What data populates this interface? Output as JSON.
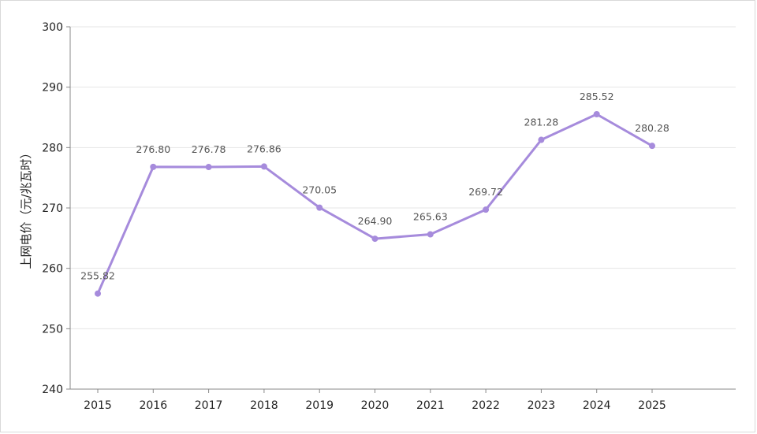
{
  "chart_data": {
    "type": "line",
    "categories": [
      "2015",
      "2016",
      "2017",
      "2018",
      "2019",
      "2020",
      "2021",
      "2022",
      "2023",
      "2024",
      "2025"
    ],
    "series": [
      {
        "values": [
          255.82,
          276.8,
          276.78,
          276.86,
          270.05,
          264.9,
          265.63,
          269.72,
          281.28,
          285.52,
          280.28
        ]
      }
    ],
    "data_labels": [
      "255.82",
      "276.80",
      "276.78",
      "276.86",
      "270.05",
      "264.90",
      "265.63",
      "269.72",
      "281.28",
      "285.52",
      "280.28"
    ],
    "ylabel": "上网电价（元/兆瓦时）",
    "xlabel": "",
    "ylim": [
      240,
      300
    ],
    "yticks": [
      240,
      250,
      260,
      270,
      280,
      290,
      300
    ],
    "grid": true,
    "line_color": "#a68bdc",
    "grid_color": "#e6e6e6",
    "axis_color": "#888888"
  }
}
